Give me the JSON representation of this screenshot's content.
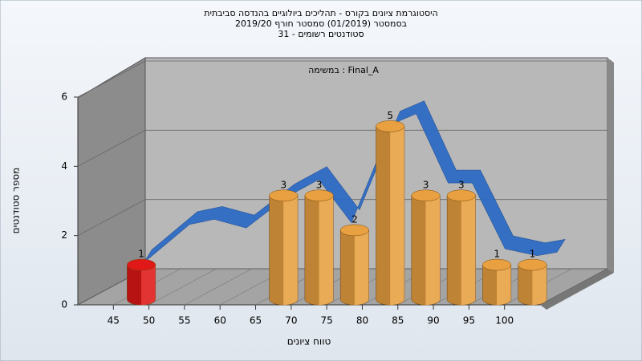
{
  "chart_data": {
    "type": "histogram",
    "title": [
      "היסטוגרמת ציונים בקורס - תהליכים ביולוגיים בהנדסה סביבתית",
      "בסמסטר  (01/2019)  סמסטר חורף 2019/20",
      "סטודנטים רשומים - 31"
    ],
    "annotation": "במשימה : Final_A",
    "x_label": "טווח ציונים",
    "y_label": "מספר סטודנטים",
    "bins": [
      45,
      50,
      55,
      60,
      65,
      70,
      75,
      80,
      85,
      90,
      95,
      100,
      105
    ],
    "values": [
      1,
      0,
      0,
      0,
      3,
      3,
      2,
      5,
      3,
      3,
      1,
      1
    ],
    "colors": [
      "#e01818",
      "#e8a040",
      "#e8a040",
      "#e8a040",
      "#e8a040",
      "#e8a040",
      "#e8a040",
      "#e8a040",
      "#e8a040",
      "#e8a040",
      "#e8a040",
      "#e8a040"
    ],
    "curve": {
      "color": "#2f6cc4",
      "x": [
        41.4,
        47.8,
        51.3,
        55.8,
        61.5,
        66,
        70.6,
        76.3,
        79.7,
        84.2,
        87.6,
        92.2,
        96.7,
        99.5
      ],
      "values": [
        0.6,
        1.7,
        1.85,
        1.6,
        2.5,
        3.0,
        1.75,
        4.6,
        4.9,
        2.9,
        2.9,
        1.0,
        0.8,
        0.9
      ]
    },
    "xlim": [
      40,
      105
    ],
    "xticks": [
      45,
      50,
      55,
      60,
      65,
      70,
      75,
      80,
      85,
      90,
      95,
      100
    ],
    "ylim": [
      0,
      6
    ],
    "yticks": [
      0,
      2,
      4,
      6
    ],
    "grid": true
  }
}
